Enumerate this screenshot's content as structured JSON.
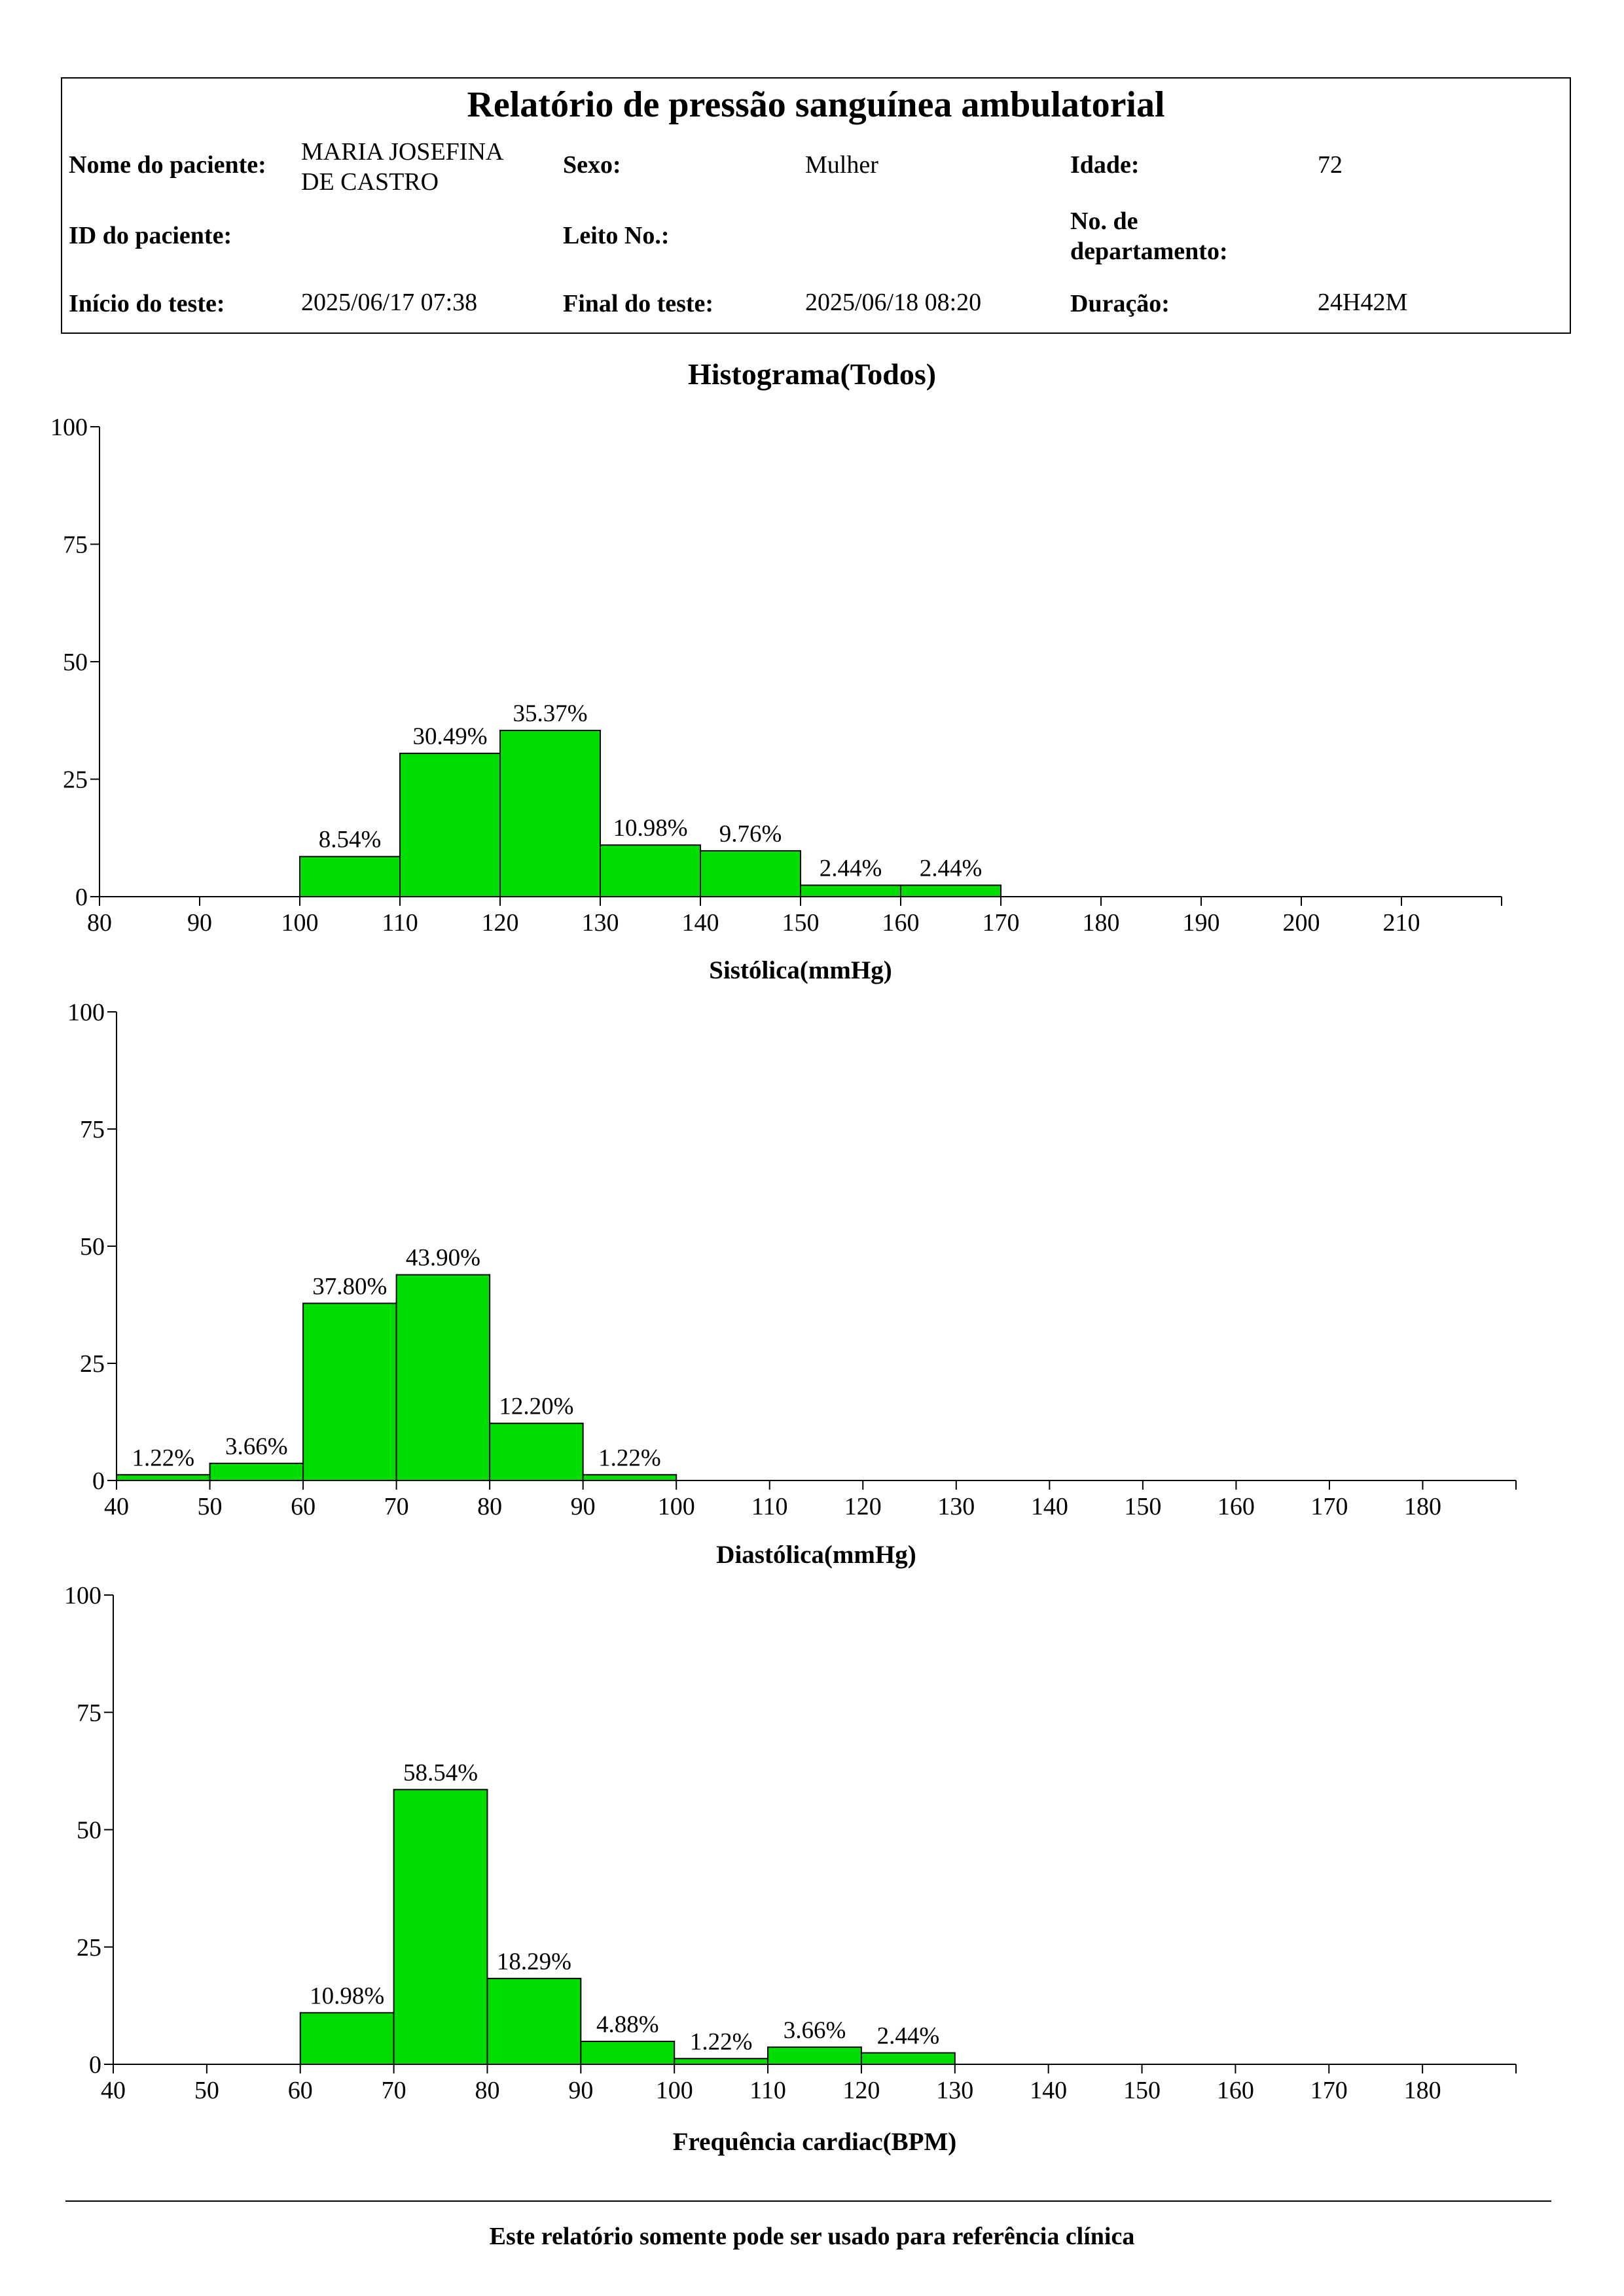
{
  "header": {
    "title": "Relatório de pressão sanguínea ambulatorial",
    "patient_name_label": "Nome do paciente:",
    "patient_name_line1": "MARIA JOSEFINA",
    "patient_name_line2": "DE CASTRO",
    "sex_label": "Sexo:",
    "sex_value": "Mulher",
    "age_label": "Idade:",
    "age_value": "72",
    "patient_id_label": "ID do paciente:",
    "patient_id_value": "",
    "bed_label": "Leito No.:",
    "bed_value": "",
    "department_label_line1": "No. de",
    "department_label_line2": "departamento:",
    "department_value": "",
    "start_label": "Início do teste:",
    "start_value": "2025/06/17 07:38",
    "end_label": "Final do teste:",
    "end_value": "2025/06/18 08:20",
    "duration_label": "Duração:",
    "duration_value": "24H42M"
  },
  "histogram_title": "Histograma(Todos)",
  "chart_data": [
    {
      "type": "bar",
      "xlabel": "Sistólica(mmHg)",
      "ylabel": "",
      "xlim": [
        80,
        220
      ],
      "ylim": [
        0,
        100
      ],
      "xticks": [
        80,
        90,
        100,
        110,
        120,
        130,
        140,
        150,
        160,
        170,
        180,
        190,
        200,
        210
      ],
      "yticks": [
        0,
        25,
        50,
        75,
        100
      ],
      "bin_width": 10,
      "bins": [
        100,
        110,
        120,
        130,
        140,
        150,
        160
      ],
      "values": [
        8.54,
        30.49,
        35.37,
        10.98,
        9.76,
        2.44,
        2.44
      ],
      "labels": [
        "8.54%",
        "30.49%",
        "35.37%",
        "10.98%",
        "9.76%",
        "2.44%",
        "2.44%"
      ],
      "bar_color": "#00dd00",
      "grid": false
    },
    {
      "type": "bar",
      "xlabel": "Diastólica(mmHg)",
      "ylabel": "",
      "xlim": [
        40,
        190
      ],
      "ylim": [
        0,
        100
      ],
      "xticks": [
        40,
        50,
        60,
        70,
        80,
        90,
        100,
        110,
        120,
        130,
        140,
        150,
        160,
        170,
        180
      ],
      "yticks": [
        0,
        25,
        50,
        75,
        100
      ],
      "bin_width": 10,
      "bins": [
        40,
        50,
        60,
        70,
        80,
        90
      ],
      "values": [
        1.22,
        3.66,
        37.8,
        43.9,
        12.2,
        1.22
      ],
      "labels": [
        "1.22%",
        "3.66%",
        "37.80%",
        "43.90%",
        "12.20%",
        "1.22%"
      ],
      "bar_color": "#00dd00",
      "grid": false
    },
    {
      "type": "bar",
      "xlabel": "Frequência cardiac(BPM)",
      "ylabel": "",
      "xlim": [
        40,
        190
      ],
      "ylim": [
        0,
        100
      ],
      "xticks": [
        40,
        50,
        60,
        70,
        80,
        90,
        100,
        110,
        120,
        130,
        140,
        150,
        160,
        170,
        180
      ],
      "yticks": [
        0,
        25,
        50,
        75,
        100
      ],
      "bin_width": 10,
      "bins": [
        60,
        70,
        80,
        90,
        100,
        110,
        120
      ],
      "values": [
        10.98,
        58.54,
        18.29,
        4.88,
        1.22,
        3.66,
        2.44
      ],
      "labels": [
        "10.98%",
        "58.54%",
        "18.29%",
        "4.88%",
        "1.22%",
        "3.66%",
        "2.44%"
      ],
      "bar_color": "#00dd00",
      "grid": false
    }
  ],
  "footer": "Este relatório somente pode ser usado para referência clínica"
}
